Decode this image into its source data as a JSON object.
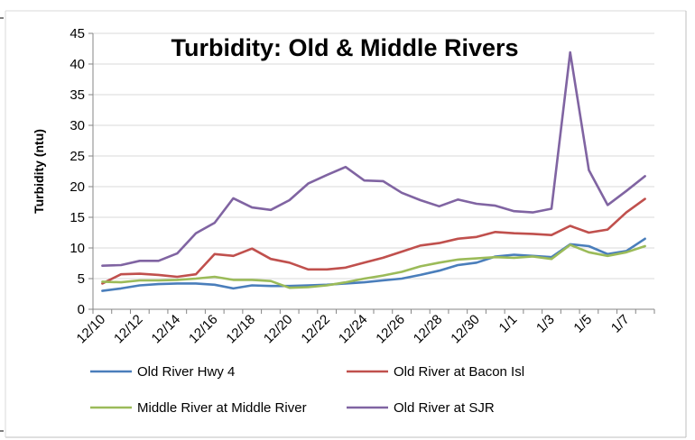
{
  "chart_data": {
    "type": "line",
    "title": "Turbidity: Old & Middle Rivers",
    "xlabel": "",
    "ylabel": "Turbidity (ntu)",
    "ylim": [
      0,
      45
    ],
    "yticks": [
      0,
      5,
      10,
      15,
      20,
      25,
      30,
      35,
      40,
      45
    ],
    "grid": true,
    "legend_position": "bottom",
    "tick_labels": [
      "12/10",
      "12/12",
      "12/14",
      "12/16",
      "12/18",
      "12/20",
      "12/22",
      "12/24",
      "12/26",
      "12/28",
      "12/30",
      "1/1",
      "1/3",
      "1/5",
      "1/7"
    ],
    "x": [
      "12/10",
      "12/11",
      "12/12",
      "12/13",
      "12/14",
      "12/15",
      "12/16",
      "12/17",
      "12/18",
      "12/19",
      "12/20",
      "12/21",
      "12/22",
      "12/23",
      "12/24",
      "12/25",
      "12/26",
      "12/27",
      "12/28",
      "12/29",
      "12/30",
      "12/31",
      "1/1",
      "1/2",
      "1/3",
      "1/4",
      "1/5",
      "1/6",
      "1/7",
      "1/8"
    ],
    "series": [
      {
        "name": "Old River Hwy 4",
        "color": "#4a7ebb",
        "values": [
          3.0,
          3.4,
          3.9,
          4.1,
          4.2,
          4.2,
          4.0,
          3.4,
          3.9,
          3.8,
          3.8,
          3.9,
          4.0,
          4.2,
          4.4,
          4.7,
          5.0,
          5.6,
          6.3,
          7.2,
          7.6,
          8.6,
          8.9,
          8.7,
          8.5,
          10.6,
          10.3,
          9.0,
          9.5,
          11.5
        ]
      },
      {
        "name": "Old River at Bacon Isl",
        "color": "#c0504d",
        "values": [
          4.2,
          5.7,
          5.8,
          5.6,
          5.3,
          5.7,
          9.0,
          8.7,
          9.9,
          8.2,
          7.6,
          6.5,
          6.5,
          6.8,
          7.6,
          8.4,
          9.4,
          10.4,
          10.8,
          11.5,
          11.8,
          12.6,
          12.4,
          12.3,
          12.1,
          13.6,
          12.5,
          13.0,
          15.8,
          18.0
        ]
      },
      {
        "name": "Middle River at Middle River",
        "color": "#9bbb59",
        "values": [
          4.5,
          4.4,
          4.7,
          4.7,
          4.8,
          5.0,
          5.3,
          4.8,
          4.8,
          4.6,
          3.5,
          3.6,
          3.9,
          4.4,
          5.0,
          5.5,
          6.1,
          7.0,
          7.6,
          8.1,
          8.3,
          8.5,
          8.4,
          8.6,
          8.2,
          10.5,
          9.3,
          8.7,
          9.3,
          10.3
        ]
      },
      {
        "name": "Old River at SJR",
        "color": "#8064a2",
        "values": [
          7.1,
          7.2,
          7.9,
          7.9,
          9.1,
          12.4,
          14.1,
          18.1,
          16.6,
          16.2,
          17.8,
          20.5,
          21.9,
          23.2,
          21.0,
          20.9,
          19.0,
          17.8,
          16.8,
          17.9,
          17.2,
          16.9,
          16.0,
          15.8,
          16.4,
          41.9,
          22.7,
          17.0,
          19.3,
          21.7
        ]
      }
    ]
  }
}
